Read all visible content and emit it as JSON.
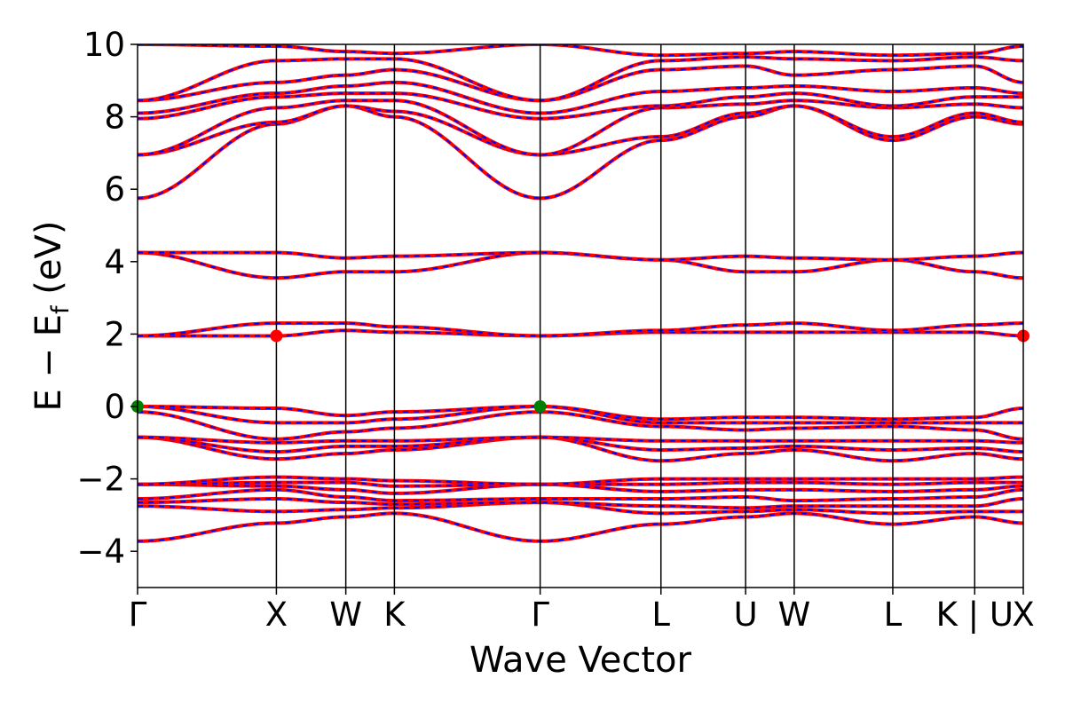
{
  "chart_data": {
    "type": "line",
    "title": "",
    "xlabel": "Wave Vector",
    "ylabel": "E − E_f (eV)",
    "ylabel_main": "E − E",
    "ylabel_sub": "f",
    "ylabel_tail": " (eV)",
    "ylim": [
      -5,
      10
    ],
    "yticks": [
      -4,
      -2,
      0,
      2,
      4,
      6,
      8,
      10
    ],
    "ytick_labels": [
      "−4",
      "−2",
      "0",
      "2",
      "4",
      "6",
      "8",
      "10"
    ],
    "xlim": [
      0,
      6.38
    ],
    "kpoints": [
      {
        "label": "Γ",
        "x": 0.0
      },
      {
        "label": "X",
        "x": 1.0
      },
      {
        "label": "W",
        "x": 1.5
      },
      {
        "label": "K",
        "x": 1.85
      },
      {
        "label": "Γ",
        "x": 2.9
      },
      {
        "label": "L",
        "x": 3.77
      },
      {
        "label": "U",
        "x": 4.38
      },
      {
        "label": "W",
        "x": 4.73
      },
      {
        "label": "L",
        "x": 5.44
      },
      {
        "label": "K | U",
        "x": 6.03
      },
      {
        "label": "X",
        "x": 6.38
      }
    ],
    "band_colors": {
      "primary": "#ff0000",
      "dash": "#0000ff"
    },
    "bands": [
      {
        "name": "band 1",
        "values": [
          -3.72,
          -3.22,
          -3.05,
          -2.95,
          -3.72,
          -3.25,
          -3.05,
          -2.95,
          -3.25,
          -3.05,
          -3.22
        ]
      },
      {
        "name": "band 2",
        "values": [
          -2.75,
          -2.9,
          -2.85,
          -2.8,
          -2.65,
          -2.95,
          -2.9,
          -2.85,
          -2.95,
          -2.9,
          -2.9
        ]
      },
      {
        "name": "band 3",
        "values": [
          -2.65,
          -2.55,
          -2.65,
          -2.7,
          -2.65,
          -2.75,
          -2.8,
          -2.75,
          -2.75,
          -2.75,
          -2.55
        ]
      },
      {
        "name": "band 4",
        "values": [
          -2.55,
          -2.3,
          -2.5,
          -2.6,
          -2.55,
          -2.55,
          -2.5,
          -2.6,
          -2.55,
          -2.5,
          -2.3
        ]
      },
      {
        "name": "band 5",
        "values": [
          -2.15,
          -2.2,
          -2.3,
          -2.4,
          -2.15,
          -2.35,
          -2.3,
          -2.3,
          -2.35,
          -2.3,
          -2.2
        ]
      },
      {
        "name": "band 6",
        "values": [
          -2.15,
          -2.1,
          -2.1,
          -2.2,
          -2.15,
          -2.15,
          -2.1,
          -2.1,
          -2.15,
          -2.1,
          -2.1
        ]
      },
      {
        "name": "band 7",
        "values": [
          -2.15,
          -1.95,
          -2.0,
          -2.05,
          -2.15,
          -2.0,
          -2.0,
          -2.0,
          -2.0,
          -2.0,
          -1.95
        ]
      },
      {
        "name": "band 8",
        "values": [
          -0.85,
          -1.45,
          -1.3,
          -1.2,
          -0.85,
          -1.5,
          -1.3,
          -1.2,
          -1.5,
          -1.3,
          -1.45
        ]
      },
      {
        "name": "band 9",
        "values": [
          -0.85,
          -1.25,
          -1.1,
          -1.1,
          -0.85,
          -1.2,
          -1.15,
          -1.1,
          -1.2,
          -1.15,
          -1.25
        ]
      },
      {
        "name": "band 10",
        "values": [
          -0.85,
          -1.0,
          -0.95,
          -0.95,
          -0.85,
          -0.95,
          -0.95,
          -0.95,
          -0.95,
          -0.95,
          -1.0
        ]
      },
      {
        "name": "band 11",
        "values": [
          -0.15,
          -0.9,
          -0.7,
          -0.6,
          -0.15,
          -0.55,
          -0.65,
          -0.6,
          -0.55,
          -0.65,
          -0.9
        ]
      },
      {
        "name": "band 12",
        "values": [
          0.0,
          -0.45,
          -0.45,
          -0.35,
          0.0,
          -0.45,
          -0.45,
          -0.45,
          -0.45,
          -0.45,
          -0.45
        ]
      },
      {
        "name": "band 13",
        "values": [
          0.0,
          -0.05,
          -0.25,
          -0.15,
          0.0,
          -0.35,
          -0.3,
          -0.3,
          -0.35,
          -0.3,
          -0.05
        ]
      },
      {
        "name": "band 14",
        "values": [
          1.95,
          1.95,
          2.1,
          2.05,
          1.95,
          2.05,
          2.05,
          2.05,
          2.05,
          2.05,
          1.95
        ]
      },
      {
        "name": "band 15",
        "values": [
          1.95,
          2.3,
          2.3,
          2.2,
          1.95,
          2.1,
          2.25,
          2.3,
          2.1,
          2.25,
          2.3
        ]
      },
      {
        "name": "band 16",
        "values": [
          4.25,
          3.55,
          3.72,
          3.72,
          4.25,
          4.05,
          3.72,
          3.72,
          4.05,
          3.72,
          3.55
        ]
      },
      {
        "name": "band 17",
        "values": [
          4.25,
          4.25,
          4.1,
          4.15,
          4.25,
          4.05,
          4.15,
          4.1,
          4.05,
          4.15,
          4.25
        ]
      },
      {
        "name": "band 18",
        "values": [
          5.75,
          7.8,
          8.3,
          8.0,
          5.75,
          7.35,
          8.0,
          8.3,
          7.35,
          8.0,
          7.8
        ]
      },
      {
        "name": "band 19",
        "values": [
          6.95,
          7.85,
          8.3,
          8.15,
          6.95,
          7.45,
          8.1,
          8.3,
          7.45,
          8.1,
          7.85
        ]
      },
      {
        "name": "band 20",
        "values": [
          6.95,
          8.25,
          8.45,
          8.45,
          6.95,
          8.25,
          8.35,
          8.45,
          8.25,
          8.35,
          8.25
        ]
      },
      {
        "name": "band 21",
        "values": [
          7.95,
          8.55,
          8.65,
          8.65,
          7.95,
          8.3,
          8.55,
          8.65,
          8.3,
          8.55,
          8.55
        ]
      },
      {
        "name": "band 22",
        "values": [
          8.1,
          8.65,
          8.85,
          8.95,
          8.1,
          8.7,
          8.8,
          8.85,
          8.7,
          8.8,
          8.65
        ]
      },
      {
        "name": "band 23",
        "values": [
          8.45,
          8.95,
          9.15,
          9.3,
          8.45,
          9.3,
          9.4,
          9.15,
          9.3,
          9.4,
          8.95
        ]
      },
      {
        "name": "band 24",
        "values": [
          8.45,
          9.55,
          9.6,
          9.6,
          8.45,
          9.55,
          9.65,
          9.6,
          9.55,
          9.65,
          9.55
        ]
      },
      {
        "name": "band 25",
        "values": [
          10.0,
          9.95,
          9.8,
          9.75,
          10.0,
          9.7,
          9.75,
          9.8,
          9.7,
          9.75,
          9.95
        ]
      }
    ],
    "markers": [
      {
        "x": 0.0,
        "y": 0.0,
        "color": "#008000"
      },
      {
        "x": 2.9,
        "y": 0.0,
        "color": "#008000"
      },
      {
        "x": 1.0,
        "y": 1.95,
        "color": "#ff0000"
      },
      {
        "x": 6.38,
        "y": 1.95,
        "color": "#ff0000"
      }
    ],
    "grid": false,
    "legend": "none"
  }
}
